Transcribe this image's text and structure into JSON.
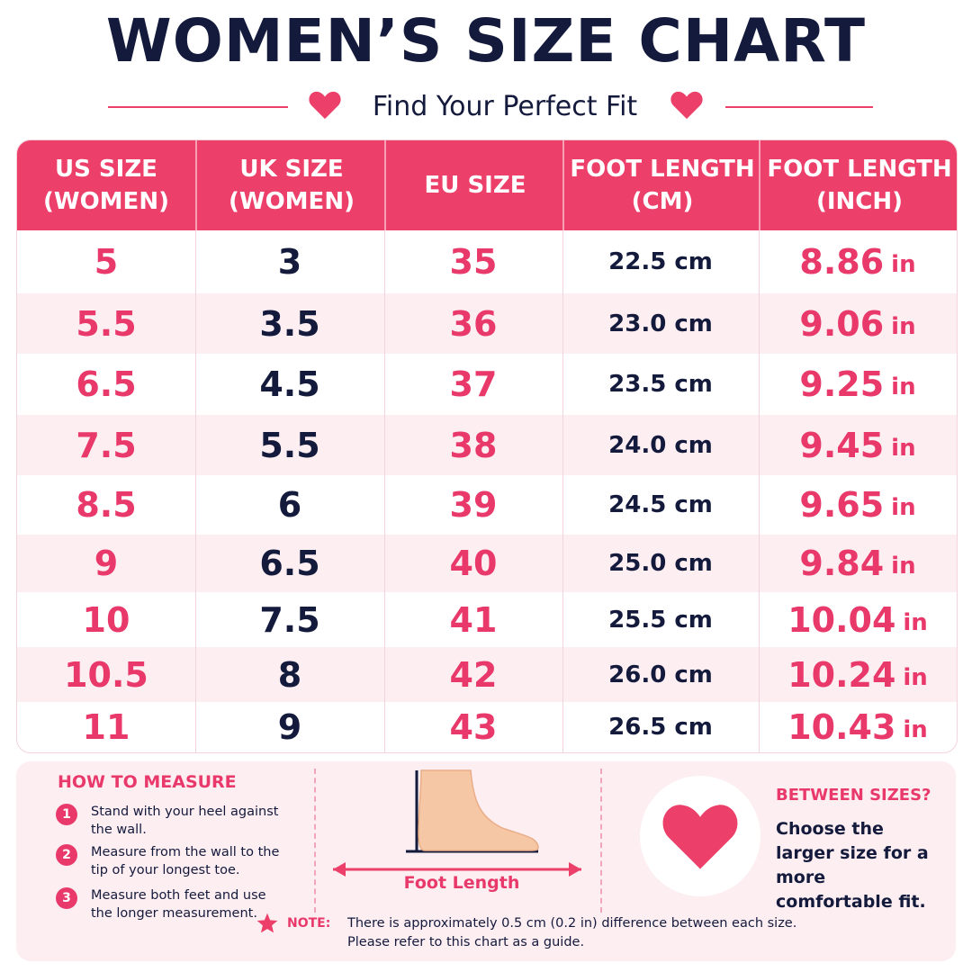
{
  "title": "WOMEN’S SIZE CHART",
  "subtitle": "Find Your Perfect Fit",
  "colors": {
    "accent": "#ec3f6a",
    "dark": "#141a3c",
    "row_alt": "#fdeef2"
  },
  "table": {
    "headers": [
      "US SIZE\n(WOMEN)",
      "UK SIZE\n(WOMEN)",
      "EU SIZE",
      "FOOT LENGTH\n(CM)",
      "FOOT LENGTH\n(INCH)"
    ],
    "inch_unit": "in",
    "rows": [
      {
        "us": "5",
        "uk": "3",
        "eu": "35",
        "cm": "22.5 cm",
        "inch": "8.86"
      },
      {
        "us": "5.5",
        "uk": "3.5",
        "eu": "36",
        "cm": "23.0 cm",
        "inch": "9.06"
      },
      {
        "us": "6.5",
        "uk": "4.5",
        "eu": "37",
        "cm": "23.5 cm",
        "inch": "9.25"
      },
      {
        "us": "7.5",
        "uk": "5.5",
        "eu": "38",
        "cm": "24.0 cm",
        "inch": "9.45"
      },
      {
        "us": "8.5",
        "uk": "6",
        "eu": "39",
        "cm": "24.5 cm",
        "inch": "9.65"
      },
      {
        "us": "9",
        "uk": "6.5",
        "eu": "40",
        "cm": "25.0 cm",
        "inch": "9.84"
      },
      {
        "us": "10",
        "uk": "7.5",
        "eu": "41",
        "cm": "25.5 cm",
        "inch": "10.04"
      },
      {
        "us": "10.5",
        "uk": "8",
        "eu": "42",
        "cm": "26.0 cm",
        "inch": "10.24"
      },
      {
        "us": "11",
        "uk": "9",
        "eu": "43",
        "cm": "26.5 cm",
        "inch": "10.43"
      }
    ]
  },
  "how_to_measure": {
    "title": "HOW TO MEASURE",
    "steps": [
      {
        "num": "1",
        "text": "Stand with your heel against the wall."
      },
      {
        "num": "2",
        "text": "Measure from the wall to the tip of your longest toe."
      },
      {
        "num": "3",
        "text": "Measure both feet and use the longer measurement."
      }
    ]
  },
  "foot_label": "Foot Length",
  "between_sizes": {
    "title": "BETWEEN SIZES?",
    "text": "Choose the larger size for a more comfortable fit."
  },
  "note": {
    "label": "NOTE:",
    "text": "There is approximately 0.5 cm (0.2 in) difference between each size. Please refer to this chart as a guide."
  }
}
